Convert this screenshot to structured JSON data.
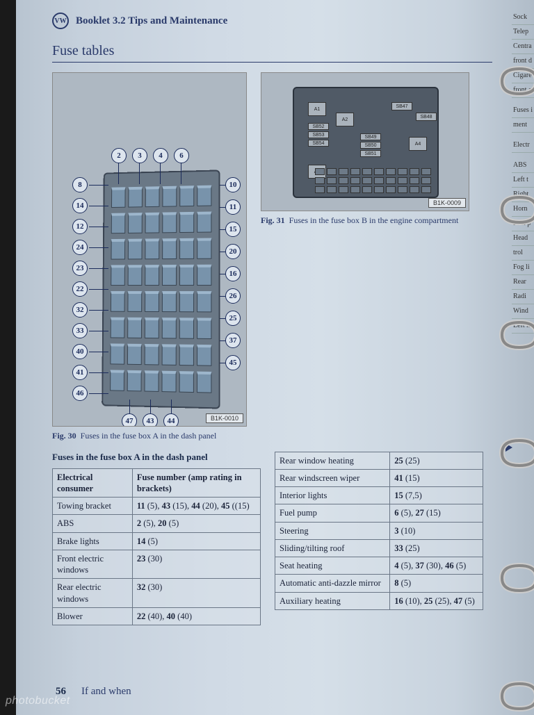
{
  "header": {
    "booklet": "Booklet 3.2  Tips and Maintenance",
    "logo": "VW"
  },
  "section_title": "Fuse tables",
  "fig30": {
    "code": "B1K-0010",
    "caption_prefix": "Fig. 30",
    "caption": "Fuses in the fuse box A in the dash panel",
    "callouts_top": [
      "2",
      "3",
      "4",
      "6"
    ],
    "callouts_left": [
      "8",
      "14",
      "12",
      "24",
      "23",
      "22",
      "32",
      "33",
      "40",
      "41",
      "46"
    ],
    "callouts_right": [
      "10",
      "11",
      "15",
      "20",
      "16",
      "26",
      "25",
      "37",
      "45"
    ],
    "callouts_bottom": [
      "47",
      "43",
      "44"
    ]
  },
  "fig31": {
    "code": "B1K-0009",
    "caption_prefix": "Fig. 31",
    "caption": "Fuses in the fuse box B in the engine compartment",
    "relays": [
      "A1",
      "A2",
      "A3",
      "A4",
      "SB47",
      "SB48",
      "SB52",
      "SB53",
      "SB54",
      "SB49",
      "SB50",
      "SB51"
    ]
  },
  "table_a": {
    "title": "Fuses in the fuse box A in the dash panel",
    "col1": "Electrical consumer",
    "col2": "Fuse number (amp rating in brackets)",
    "col2_bold": "Fuse number",
    "col2_rest": " (amp rating in brackets)",
    "rows": [
      {
        "c": "Towing bracket",
        "f": "11 (5), 43 (15), 44 (20), 45 ((15)"
      },
      {
        "c": "ABS",
        "f": "2 (5), 20 (5)"
      },
      {
        "c": "Brake lights",
        "f": "14 (5)"
      },
      {
        "c": "Front electric windows",
        "f": "23 (30)"
      },
      {
        "c": "Rear electric windows",
        "f": "32 (30)"
      },
      {
        "c": "Blower",
        "f": "22 (40), 40 (40)"
      }
    ]
  },
  "table_b": {
    "rows": [
      {
        "c": "Rear window heating",
        "f": "25 (25)"
      },
      {
        "c": "Rear windscreen wiper",
        "f": "41 (15)"
      },
      {
        "c": "Interior lights",
        "f": "15 (7,5)"
      },
      {
        "c": "Fuel pump",
        "f": "6 (5), 27 (15)"
      },
      {
        "c": "Steering",
        "f": "3 (10)"
      },
      {
        "c": "Sliding/tilting roof",
        "f": "33 (25)"
      },
      {
        "c": "Seat heating",
        "f": "4 (5), 37 (30), 46 (5)"
      },
      {
        "c": "Automatic anti-dazzle mirror",
        "f": "8 (5)"
      },
      {
        "c": "Auxiliary heating",
        "f": "16 (10), 25 (25), 47 (5)"
      }
    ]
  },
  "footer": {
    "pageno": "56",
    "text": "If and when"
  },
  "nextpage_items": [
    "Sock",
    "Telep",
    "Centra",
    "front d",
    "Cigare",
    "front a",
    "",
    "Fuses i",
    "ment",
    "",
    "Electr",
    "",
    "ABS",
    "Left t",
    "Right",
    "Horn",
    "Fuel p",
    "Head",
    "trol",
    "Fog li",
    "Rear",
    "Radi",
    "Wind",
    "Left h"
  ],
  "watermark": "photobucket",
  "colors": {
    "ink": "#2a3a6a",
    "border": "#6a7686",
    "page_bg": "#c8d3de",
    "diagram_bg": "#aeb8c2",
    "fusebox": "#6a7886",
    "fuse": "#7893ab"
  }
}
